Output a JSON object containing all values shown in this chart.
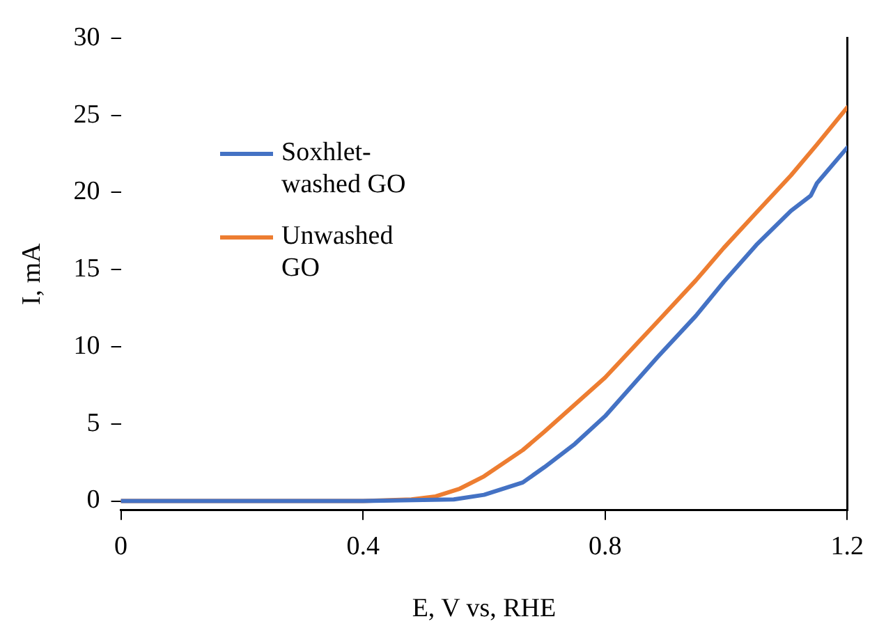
{
  "chart_data": {
    "type": "line",
    "xlabel": "E, V vs, RHE",
    "ylabel": "I, mA",
    "xlim": [
      0,
      1.2
    ],
    "xticks": [
      0,
      0.4,
      0.8,
      1.2
    ],
    "ylim": [
      -0.6,
      30
    ],
    "yticks": [
      0,
      5,
      10,
      15,
      20,
      25,
      30
    ],
    "grid": false,
    "legend": "top left",
    "marker": "none",
    "line_style": "solid",
    "series": [
      {
        "name": "Soxhlet-washed GO",
        "color": "#4472c4",
        "x": [
          0,
          0.2,
          0.4,
          0.55,
          0.6,
          0.664,
          0.7,
          0.75,
          0.8,
          0.886,
          0.95,
          0.996,
          1.05,
          1.107,
          1.14,
          1.15,
          1.2
        ],
        "values": [
          0,
          0,
          0,
          0.1,
          0.4,
          1.2,
          2.2,
          3.7,
          5.5,
          9.3,
          12.0,
          14.2,
          16.6,
          18.8,
          19.8,
          20.6,
          22.9
        ]
      },
      {
        "name": "Unwashed GO",
        "color": "#ed7d31",
        "x": [
          0,
          0.2,
          0.4,
          0.48,
          0.52,
          0.56,
          0.6,
          0.664,
          0.7,
          0.8,
          0.886,
          0.95,
          0.996,
          1.05,
          1.107,
          1.15,
          1.2
        ],
        "values": [
          0,
          0,
          0,
          0.1,
          0.3,
          0.8,
          1.6,
          3.3,
          4.5,
          8.0,
          11.6,
          14.3,
          16.4,
          18.7,
          21.1,
          23.1,
          25.5
        ]
      }
    ]
  }
}
